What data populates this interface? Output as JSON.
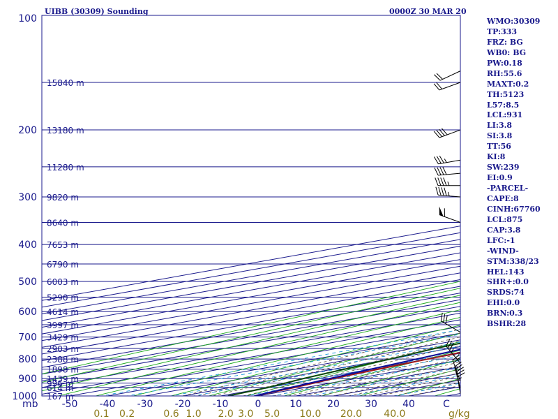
{
  "chart_data": {
    "type": "line",
    "title_left": "UIBB (30309) Sounding",
    "title_right": "0000Z 30 MAR 20",
    "x_axis_unit": "mb",
    "temperature_ticks": [
      -50,
      -40,
      -30,
      -20,
      -10,
      0,
      10,
      20,
      30,
      40,
      50
    ],
    "temperature_tick_labels": [
      "-50",
      "-40",
      "-30",
      "-20",
      "-10",
      "0",
      "10",
      "20",
      "30",
      "40",
      "C"
    ],
    "pressure_ticks": [
      100,
      200,
      300,
      400,
      500,
      600,
      700,
      800,
      900,
      1000
    ],
    "pressure_levels_mb": [
      1000,
      950,
      925,
      900,
      850,
      800,
      750,
      700,
      650,
      600,
      550,
      500,
      450,
      400,
      350,
      300,
      250,
      200,
      150,
      100
    ],
    "height_labels": [
      "167 m",
      "614 m",
      "996 m",
      "1439 m",
      "1898 m",
      "2388 m",
      "2903 m",
      "3429 m",
      "3997 m",
      "4614 m",
      "5290 m",
      "6003 m",
      "6790 m",
      "7653 m",
      "8640 m",
      "9820 m",
      "11280 m",
      "13180 m",
      "15840 m"
    ],
    "mixing_ratio_unit": "g/kg",
    "mixing_ratio_ticks": [
      0.1,
      0.2,
      0.6,
      1.0,
      2.0,
      3.0,
      5.0,
      10.0,
      20.0,
      40.0
    ],
    "mixing_ratio_labels": [
      "0.1",
      "0.2",
      "0.6",
      "1.0",
      "2.0",
      "3.0",
      "5.0",
      "10.0",
      "20.0",
      "40.0"
    ],
    "grid": true,
    "series": [
      {
        "key": "temperature",
        "color": "#a01818",
        "points": [
          [
            -1,
            1000
          ],
          [
            -3,
            950
          ],
          [
            -6,
            900
          ],
          [
            -8,
            850
          ],
          [
            -10,
            800
          ],
          [
            -12,
            750
          ],
          [
            -14,
            700
          ],
          [
            -18,
            650
          ],
          [
            -21,
            600
          ],
          [
            -24,
            550
          ],
          [
            -28,
            500
          ],
          [
            -31,
            450
          ],
          [
            -37,
            400
          ],
          [
            -44,
            350
          ],
          [
            -50,
            320
          ],
          [
            -52,
            300
          ],
          [
            -56,
            270
          ],
          [
            -62,
            250
          ],
          [
            -69,
            220
          ],
          [
            -75,
            200
          ],
          [
            -79,
            170
          ],
          [
            -81,
            150
          ],
          [
            -83,
            120
          ],
          [
            -86,
            100
          ]
        ]
      },
      {
        "key": "dewpoint",
        "color": "#0d4a0d",
        "points": [
          [
            -8,
            1000
          ],
          [
            -10,
            950
          ],
          [
            -14,
            900
          ],
          [
            -17,
            850
          ],
          [
            -20,
            800
          ],
          [
            -24,
            750
          ],
          [
            -26,
            700
          ],
          [
            -29,
            650
          ],
          [
            -33,
            600
          ],
          [
            -38,
            550
          ],
          [
            -43,
            500
          ],
          [
            -48,
            450
          ],
          [
            -55,
            400
          ],
          [
            -61,
            350
          ],
          [
            -66,
            300
          ],
          [
            -70,
            250
          ],
          [
            -73,
            200
          ],
          [
            -80,
            170
          ],
          [
            -85,
            150
          ],
          [
            -94,
            120
          ],
          [
            -98,
            100
          ]
        ]
      },
      {
        "key": "parcel",
        "color": "#0d0d99",
        "points": [
          [
            -1,
            1000
          ],
          [
            -4,
            950
          ],
          [
            -7,
            900
          ],
          [
            -10,
            850
          ],
          [
            -13,
            800
          ],
          [
            -16,
            750
          ],
          [
            -19,
            700
          ],
          [
            -23,
            650
          ],
          [
            -27,
            600
          ],
          [
            -31,
            550
          ],
          [
            -36,
            500
          ],
          [
            -41,
            450
          ],
          [
            -47,
            400
          ],
          [
            -53,
            350
          ],
          [
            -59,
            300
          ],
          [
            -66,
            250
          ],
          [
            -74,
            200
          ],
          [
            -84,
            150
          ],
          [
            -88,
            130
          ],
          [
            -92,
            110
          ]
        ]
      }
    ],
    "wind_barbs": [
      {
        "p": 985,
        "dir": 350,
        "spd": 35
      },
      {
        "p": 955,
        "dir": 345,
        "spd": 25
      },
      {
        "p": 915,
        "dir": 340,
        "spd": 20
      },
      {
        "p": 820,
        "dir": 320,
        "spd": 35
      },
      {
        "p": 680,
        "dir": 300,
        "spd": 30
      },
      {
        "p": 350,
        "dir": 290,
        "spd": 60
      },
      {
        "p": 300,
        "dir": 275,
        "spd": 45
      },
      {
        "p": 280,
        "dir": 270,
        "spd": 45
      },
      {
        "p": 260,
        "dir": 265,
        "spd": 40
      },
      {
        "p": 240,
        "dir": 260,
        "spd": 35
      },
      {
        "p": 200,
        "dir": 250,
        "spd": 40
      },
      {
        "p": 150,
        "dir": 250,
        "spd": 20
      },
      {
        "p": 140,
        "dir": 245,
        "spd": 20
      }
    ]
  },
  "indices": [
    "WMO:30309",
    "TP:333",
    "FRZ: BG",
    "WB0: BG",
    "PW:0.18",
    "RH:55.6",
    "MAXT:0.2",
    "TH:5123",
    "L57:8.5",
    "LCL:931",
    "LI:3.8",
    "SI:3.8",
    "TT:56",
    "KI:8",
    "SW:239",
    "EI:0.9",
    "-PARCEL-",
    "CAPE:8",
    "CINH:67760",
    "LCL:875",
    "CAP:3.8",
    "LFC:-1",
    "-WIND-",
    "STM:338/23",
    "HEL:143",
    "SHR+:0.0",
    "SRDS:74",
    "EHI:0.0",
    "BRN:0.3",
    "BSHR:28"
  ],
  "colors": {
    "isobar": "#1a1a8c",
    "isotherm": "#1a1a8c",
    "dry_adiabat": "#1faa1f",
    "moist_adiabat": "#6b5e4a",
    "mixing_ratio": "#2aa0dd",
    "frame": "#1a1a8c"
  }
}
